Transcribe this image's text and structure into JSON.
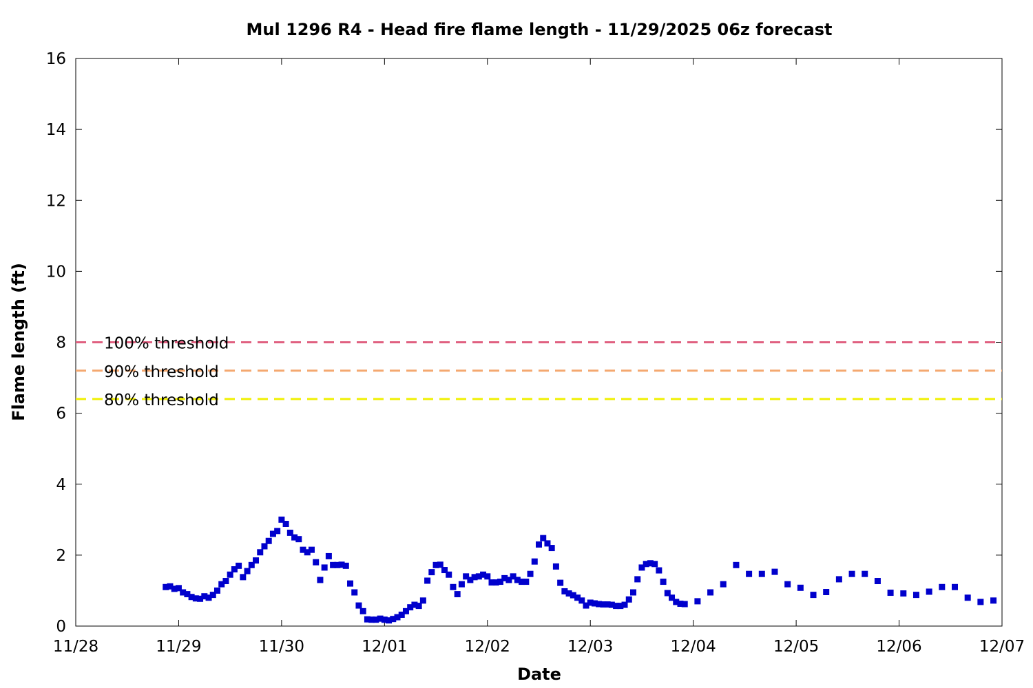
{
  "chart_data": {
    "type": "scatter",
    "title": "Mul 1296 R4 - Head fire flame length - 11/29/2025 06z forecast",
    "xlabel": "Date",
    "ylabel": "Flame length (ft)",
    "ylim": [
      0,
      16
    ],
    "xlim": [
      "11/28",
      "12/07"
    ],
    "x_tick_labels": [
      "11/28",
      "11/29",
      "11/30",
      "12/01",
      "12/02",
      "12/03",
      "12/04",
      "12/05",
      "12/06",
      "12/07"
    ],
    "y_tick_labels": [
      "0",
      "2",
      "4",
      "6",
      "8",
      "10",
      "12",
      "14",
      "16"
    ],
    "grid": false,
    "thresholds": [
      {
        "name": "100% threshold",
        "value": 8.0,
        "color": "#e06080"
      },
      {
        "name": "90% threshold",
        "value": 7.2,
        "color": "#f4a870"
      },
      {
        "name": "80% threshold",
        "value": 6.4,
        "color": "#f0f000"
      }
    ],
    "legend_position": "left",
    "series": [
      {
        "color": "#0000cc",
        "marker": "square",
        "x": [
          "11/28 21:00",
          "11/28 22:00",
          "11/28 23:00",
          "11/29 00:00",
          "11/29 01:00",
          "11/29 02:00",
          "11/29 03:00",
          "11/29 04:00",
          "11/29 05:00",
          "11/29 06:00",
          "11/29 07:00",
          "11/29 08:00",
          "11/29 09:00",
          "11/29 10:00",
          "11/29 11:00",
          "11/29 12:00",
          "11/29 13:00",
          "11/29 14:00",
          "11/29 15:00",
          "11/29 16:00",
          "11/29 17:00",
          "11/29 18:00",
          "11/29 19:00",
          "11/29 20:00",
          "11/29 21:00",
          "11/29 22:00",
          "11/29 23:00",
          "11/30 00:00",
          "11/30 01:00",
          "11/30 02:00",
          "11/30 03:00",
          "11/30 04:00",
          "11/30 05:00",
          "11/30 06:00",
          "11/30 07:00",
          "11/30 08:00",
          "11/30 09:00",
          "11/30 10:00",
          "11/30 11:00",
          "11/30 12:00",
          "11/30 13:00",
          "11/30 14:00",
          "11/30 15:00",
          "11/30 16:00",
          "11/30 17:00",
          "11/30 18:00",
          "11/30 19:00",
          "11/30 20:00",
          "11/30 21:00",
          "11/30 22:00",
          "11/30 23:00",
          "12/01 00:00",
          "12/01 01:00",
          "12/01 02:00",
          "12/01 03:00",
          "12/01 04:00",
          "12/01 05:00",
          "12/01 06:00",
          "12/01 07:00",
          "12/01 08:00",
          "12/01 09:00",
          "12/01 10:00",
          "12/01 11:00",
          "12/01 12:00",
          "12/01 13:00",
          "12/01 14:00",
          "12/01 15:00",
          "12/01 16:00",
          "12/01 17:00",
          "12/01 18:00",
          "12/01 19:00",
          "12/01 20:00",
          "12/01 21:00",
          "12/01 22:00",
          "12/01 23:00",
          "12/02 00:00",
          "12/02 01:00",
          "12/02 02:00",
          "12/02 03:00",
          "12/02 04:00",
          "12/02 05:00",
          "12/02 06:00",
          "12/02 07:00",
          "12/02 08:00",
          "12/02 09:00",
          "12/02 10:00",
          "12/02 11:00",
          "12/02 12:00",
          "12/02 13:00",
          "12/02 14:00",
          "12/02 15:00",
          "12/02 16:00",
          "12/02 17:00",
          "12/02 18:00",
          "12/02 19:00",
          "12/02 20:00",
          "12/02 21:00",
          "12/02 22:00",
          "12/02 23:00",
          "12/03 00:00",
          "12/03 01:00",
          "12/03 02:00",
          "12/03 03:00",
          "12/03 04:00",
          "12/03 05:00",
          "12/03 06:00",
          "12/03 07:00",
          "12/03 08:00",
          "12/03 09:00",
          "12/03 10:00",
          "12/03 11:00",
          "12/03 12:00",
          "12/03 13:00",
          "12/03 14:00",
          "12/03 15:00",
          "12/03 16:00",
          "12/03 17:00",
          "12/03 18:00",
          "12/03 19:00",
          "12/03 20:00",
          "12/03 21:00",
          "12/03 22:00",
          "12/04 01:00",
          "12/04 04:00",
          "12/04 07:00",
          "12/04 10:00",
          "12/04 13:00",
          "12/04 16:00",
          "12/04 19:00",
          "12/04 22:00",
          "12/05 01:00",
          "12/05 04:00",
          "12/05 07:00",
          "12/05 10:00",
          "12/05 13:00",
          "12/05 16:00",
          "12/05 19:00",
          "12/05 22:00",
          "12/06 01:00",
          "12/06 04:00",
          "12/06 07:00",
          "12/06 10:00",
          "12/06 13:00",
          "12/06 16:00",
          "12/06 19:00",
          "12/06 22:00"
        ],
        "y": [
          1.1,
          1.12,
          1.05,
          1.07,
          0.95,
          0.9,
          0.82,
          0.78,
          0.77,
          0.84,
          0.8,
          0.88,
          1.0,
          1.18,
          1.27,
          1.45,
          1.6,
          1.7,
          1.38,
          1.55,
          1.72,
          1.85,
          2.08,
          2.25,
          2.4,
          2.6,
          2.68,
          3.0,
          2.88,
          2.63,
          2.5,
          2.45,
          2.15,
          2.08,
          2.15,
          1.8,
          1.3,
          1.65,
          1.97,
          1.72,
          1.72,
          1.73,
          1.7,
          1.2,
          0.95,
          0.58,
          0.42,
          0.19,
          0.18,
          0.18,
          0.21,
          0.18,
          0.16,
          0.2,
          0.25,
          0.32,
          0.42,
          0.53,
          0.6,
          0.57,
          0.72,
          1.28,
          1.52,
          1.72,
          1.73,
          1.58,
          1.45,
          1.1,
          0.9,
          1.18,
          1.4,
          1.3,
          1.38,
          1.4,
          1.45,
          1.4,
          1.23,
          1.23,
          1.25,
          1.35,
          1.3,
          1.4,
          1.3,
          1.25,
          1.25,
          1.47,
          1.82,
          2.3,
          2.48,
          2.33,
          2.2,
          1.68,
          1.22,
          0.98,
          0.92,
          0.87,
          0.8,
          0.72,
          0.58,
          0.66,
          0.64,
          0.62,
          0.61,
          0.61,
          0.6,
          0.57,
          0.57,
          0.6,
          0.75,
          0.95,
          1.32,
          1.65,
          1.75,
          1.77,
          1.75,
          1.57,
          1.25,
          0.93,
          0.8,
          0.68,
          0.63,
          0.62,
          0.7,
          0.95,
          1.18,
          1.72,
          1.47,
          1.47,
          1.53,
          1.18,
          1.08,
          0.88,
          0.96,
          1.32,
          1.47,
          1.47,
          1.27,
          0.94,
          0.92,
          0.88,
          0.97,
          1.1,
          1.1,
          0.8,
          0.68,
          0.72
        ]
      }
    ]
  }
}
